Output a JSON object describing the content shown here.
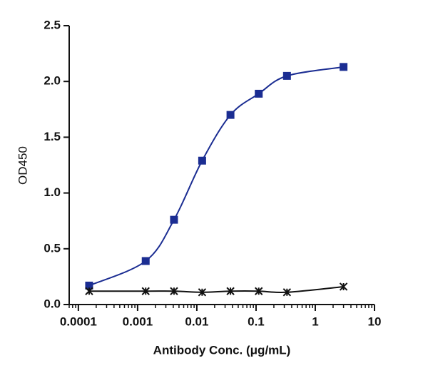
{
  "chart_data": {
    "type": "line",
    "xlabel": "Antibody Conc. (μg/mL)",
    "ylabel": "OD450",
    "xscale": "log",
    "x": [
      0.000152,
      0.00137,
      0.00412,
      0.0123,
      0.037,
      0.111,
      0.333,
      3
    ],
    "series": [
      {
        "color": "#1b2d92",
        "marker": "square",
        "values": [
          0.17,
          0.39,
          0.76,
          1.29,
          1.7,
          1.89,
          2.05,
          2.13
        ]
      },
      {
        "color": "#111111",
        "marker": "x",
        "values": [
          0.12,
          0.12,
          0.12,
          0.11,
          0.12,
          0.12,
          0.11,
          0.16
        ]
      }
    ],
    "xlim": [
      7e-05,
      10
    ],
    "xticks": [
      0.0001,
      0.001,
      0.01,
      0.1,
      1,
      10
    ],
    "ylim": [
      0,
      2.5
    ],
    "yticks": [
      {
        "value": 0,
        "label": "0.0"
      },
      0.5,
      {
        "value": 1,
        "label": "1.0"
      },
      1.5,
      {
        "value": 2,
        "label": "2.0"
      },
      2.5
    ]
  }
}
